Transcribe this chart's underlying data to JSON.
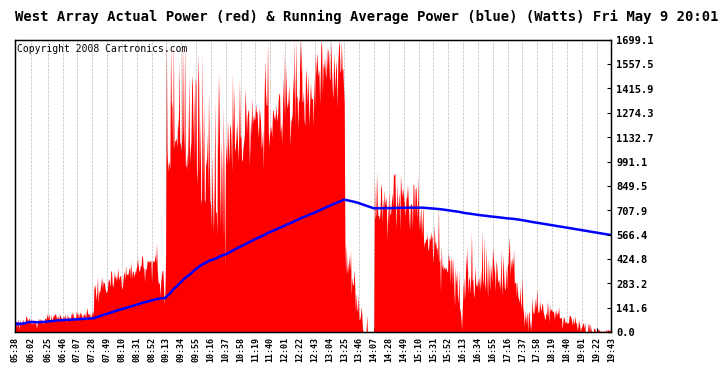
{
  "title": "West Array Actual Power (red) & Running Average Power (blue) (Watts) Fri May 9 20:01",
  "copyright": "Copyright 2008 Cartronics.com",
  "yticks": [
    0.0,
    141.6,
    283.2,
    424.8,
    566.4,
    707.9,
    849.5,
    991.1,
    1132.7,
    1274.3,
    1415.9,
    1557.5,
    1699.1
  ],
  "ymax": 1699.1,
  "ymin": 0.0,
  "xtick_labels": [
    "05:38",
    "06:02",
    "06:25",
    "06:46",
    "07:07",
    "07:28",
    "07:49",
    "08:10",
    "08:31",
    "08:52",
    "09:13",
    "09:34",
    "09:55",
    "10:16",
    "10:37",
    "10:58",
    "11:19",
    "11:40",
    "12:01",
    "12:22",
    "12:43",
    "13:04",
    "13:25",
    "13:46",
    "14:07",
    "14:28",
    "14:49",
    "15:10",
    "15:31",
    "15:52",
    "16:13",
    "16:34",
    "16:55",
    "17:16",
    "17:37",
    "17:58",
    "18:19",
    "18:40",
    "19:01",
    "19:22",
    "19:43"
  ],
  "bg_color": "#ffffff",
  "plot_bg_color": "#ffffff",
  "grid_color": "#aaaaaa",
  "bar_color": "#ff0000",
  "avg_color": "#0000ff",
  "title_fontsize": 10,
  "copyright_fontsize": 7
}
